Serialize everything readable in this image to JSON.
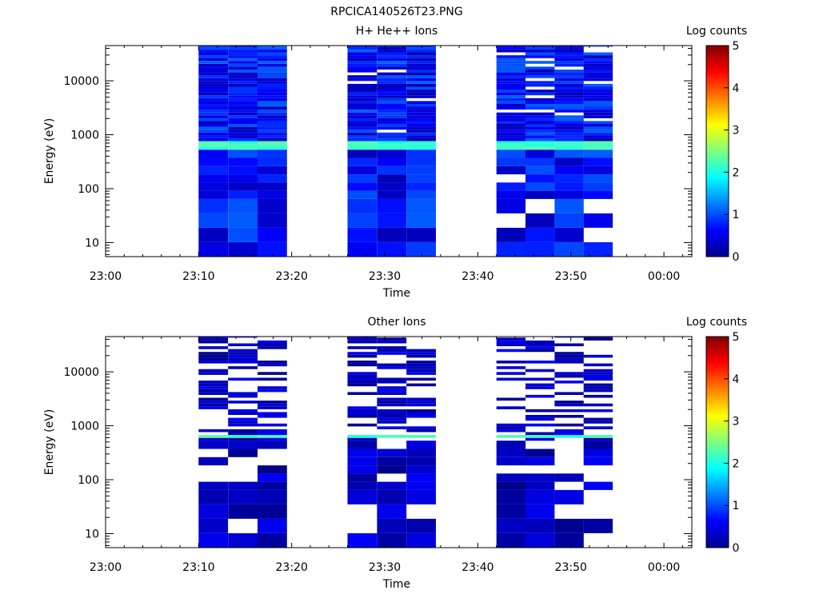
{
  "figure_title": "RPCICA140526T23.PNG",
  "chart_data": [
    {
      "type": "heatmap",
      "title": "H+ He++ Ions",
      "xlabel": "Time",
      "ylabel": "Energy (eV)",
      "x_ticks": [
        "23:00",
        "23:10",
        "23:20",
        "23:30",
        "23:40",
        "23:50",
        "00:00"
      ],
      "x_range": [
        "23:00",
        "00:03"
      ],
      "y_scale": "log",
      "y_ticks": [
        "10",
        "100",
        "1000",
        "10000"
      ],
      "y_range": [
        5.5,
        45000
      ],
      "colorbar": {
        "label": "Log counts",
        "range": [
          0,
          5
        ],
        "ticks": [
          "0",
          "1",
          "2",
          "3",
          "4",
          "5"
        ]
      },
      "blocks": [
        {
          "start": "23:10",
          "end": "23:19:30",
          "columns": 3,
          "profile": "panel1-a",
          "seed": 11
        },
        {
          "start": "23:26",
          "end": "23:35:30",
          "columns": 3,
          "profile": "panel1-b",
          "seed": 23
        },
        {
          "start": "23:42",
          "end": "23:54:30",
          "columns": 4,
          "profile": "panel1-c",
          "seed": 37
        }
      ],
      "bright_band_ev": [
        560,
        720
      ]
    },
    {
      "type": "heatmap",
      "title": "Other Ions",
      "xlabel": "Time",
      "ylabel": "Energy (eV)",
      "x_ticks": [
        "23:00",
        "23:10",
        "23:20",
        "23:30",
        "23:40",
        "23:50",
        "00:00"
      ],
      "x_range": [
        "23:00",
        "00:03"
      ],
      "y_scale": "log",
      "y_ticks": [
        "10",
        "100",
        "1000",
        "10000"
      ],
      "y_range": [
        5.5,
        45000
      ],
      "colorbar": {
        "label": "Log counts",
        "range": [
          0,
          5
        ],
        "ticks": [
          "0",
          "1",
          "2",
          "3",
          "4",
          "5"
        ]
      },
      "blocks": [
        {
          "start": "23:10",
          "end": "23:19:30",
          "columns": 3,
          "profile": "panel2-a",
          "seed": 51
        },
        {
          "start": "23:26",
          "end": "23:35:30",
          "columns": 3,
          "profile": "panel2-b",
          "seed": 63
        },
        {
          "start": "23:42",
          "end": "23:54:30",
          "columns": 4,
          "profile": "panel2-c",
          "seed": 77
        }
      ],
      "bright_band_ev": [
        590,
        690
      ]
    }
  ]
}
